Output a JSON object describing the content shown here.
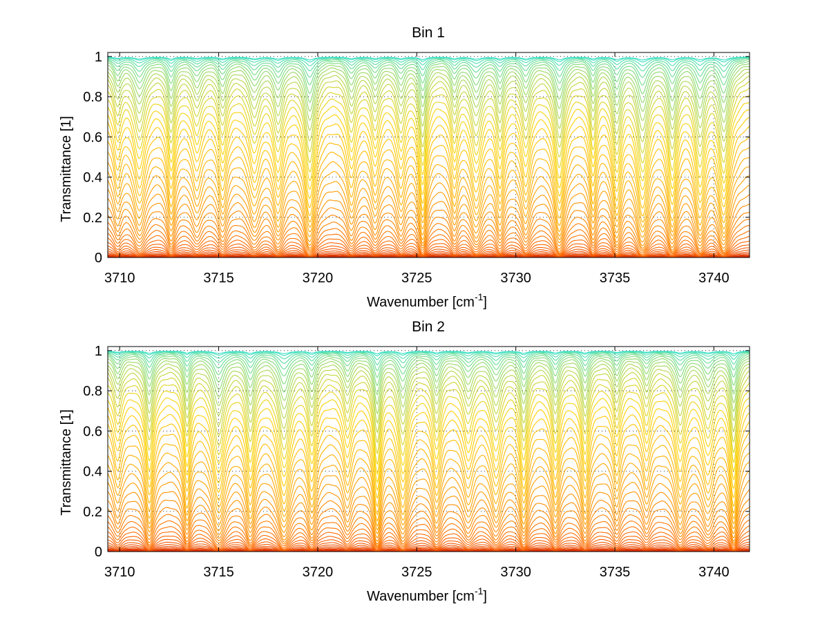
{
  "chart_data": [
    {
      "type": "line",
      "title": "Bin 1",
      "xlabel": "Wavenumber [cm",
      "xlabel_sup": "-1",
      "xlabel_end": "]",
      "ylabel": "Transmittance [1]",
      "xlim": [
        3709.4,
        3741.8
      ],
      "ylim": [
        0,
        1.02
      ],
      "xticks": [
        3710,
        3715,
        3720,
        3725,
        3730,
        3735,
        3740
      ],
      "yticks": [
        0,
        0.2,
        0.4,
        0.6,
        0.8,
        1
      ],
      "grid": true,
      "legend": "none",
      "colormap": [
        "#c00000",
        "#ff6a00",
        "#ffd200",
        "#33e0c8"
      ],
      "series_count": 48,
      "absorption_line_centers": [
        3709.9,
        3711.0,
        3712.6,
        3713.9,
        3715.2,
        3716.8,
        3718.0,
        3719.6,
        3721.7,
        3722.9,
        3724.2,
        3725.3,
        3726.9,
        3728.0,
        3729.2,
        3730.5,
        3732.2,
        3733.9,
        3735.1,
        3736.4,
        3737.9,
        3739.3,
        3740.5
      ]
    },
    {
      "type": "line",
      "title": "Bin 2",
      "xlabel": "Wavenumber [cm",
      "xlabel_sup": "-1",
      "xlabel_end": "]",
      "ylabel": "Transmittance [1]",
      "xlim": [
        3709.4,
        3741.8
      ],
      "ylim": [
        0,
        1.02
      ],
      "xticks": [
        3710,
        3715,
        3720,
        3725,
        3730,
        3735,
        3740
      ],
      "yticks": [
        0,
        0.2,
        0.4,
        0.6,
        0.8,
        1
      ],
      "grid": true,
      "legend": "none",
      "colormap": [
        "#c00000",
        "#ff6a00",
        "#ffd200",
        "#33e0c8"
      ],
      "series_count": 48,
      "absorption_line_centers": [
        3709.9,
        3711.5,
        3713.4,
        3715.0,
        3716.6,
        3718.3,
        3719.7,
        3721.5,
        3723.0,
        3724.3,
        3726.0,
        3727.6,
        3729.0,
        3730.4,
        3732.0,
        3733.5,
        3735.1,
        3736.6,
        3738.3,
        3739.7,
        3741.0
      ]
    }
  ]
}
